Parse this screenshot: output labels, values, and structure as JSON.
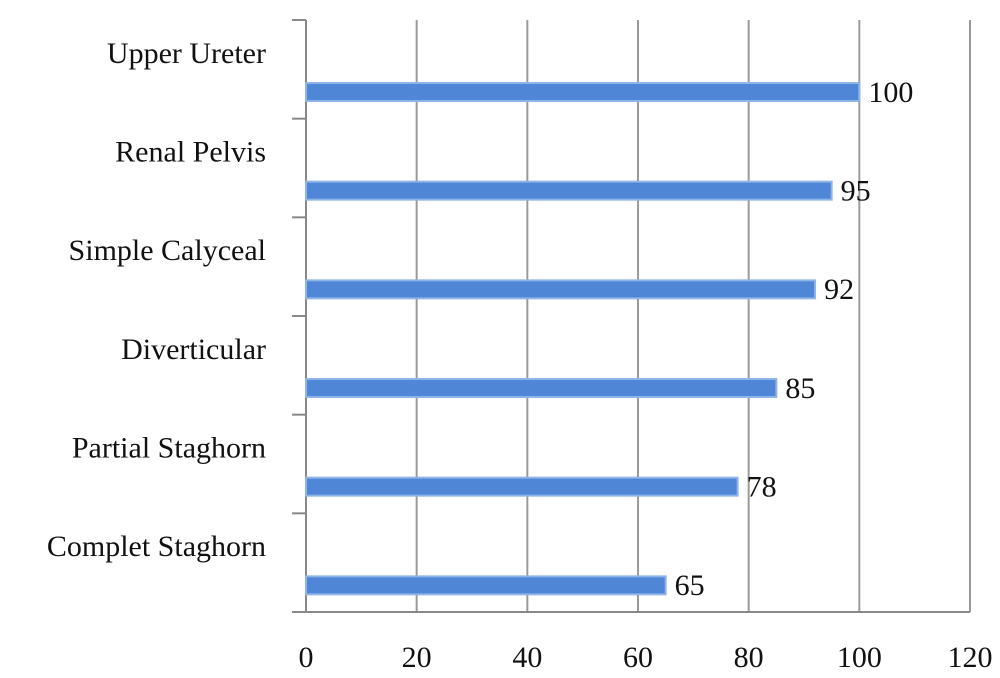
{
  "chart_data": {
    "type": "bar",
    "orientation": "horizontal",
    "categories": [
      "Upper Ureter",
      "Renal Pelvis",
      "Simple Calyceal",
      "Diverticular",
      "Partial Staghorn",
      "Complet Staghorn"
    ],
    "values": [
      100,
      95,
      92,
      85,
      78,
      65
    ],
    "color": "#4f86d6",
    "xlim": [
      0,
      120
    ],
    "xticks": [
      0,
      20,
      40,
      60,
      80,
      100,
      120
    ],
    "grid": true
  }
}
